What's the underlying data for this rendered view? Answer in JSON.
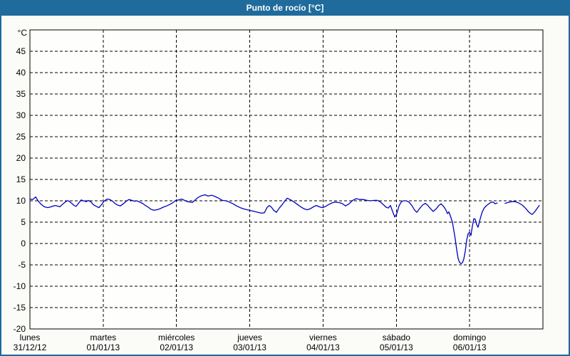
{
  "window": {
    "title": "Punto de rocío [°C]"
  },
  "colors": {
    "titlebar_bg": "#1f6b9c",
    "frame_border": "#1f6b9c",
    "title_text": "#ffffff",
    "line": "#0000c0",
    "grid": "#000000",
    "plot_bg": "#fefffc",
    "page_bg": "#fbfcf8"
  },
  "chart_data": {
    "type": "line",
    "title": "Punto de rocío [°C]",
    "y_unit_label": "°C",
    "ylim": [
      -20,
      50
    ],
    "y_ticks": [
      45,
      40,
      35,
      30,
      25,
      20,
      15,
      10,
      5,
      0,
      -5,
      -10,
      -15,
      -20
    ],
    "grid": "dashed",
    "legend": "none",
    "x_days": [
      {
        "day": "lunes",
        "date": "31/12/12"
      },
      {
        "day": "martes",
        "date": "01/01/13"
      },
      {
        "day": "miércoles",
        "date": "02/01/13"
      },
      {
        "day": "jueves",
        "date": "03/01/13"
      },
      {
        "day": "viernes",
        "date": "04/01/13"
      },
      {
        "day": "sábado",
        "date": "05/01/13"
      },
      {
        "day": "domingo",
        "date": "06/01/13"
      }
    ],
    "series": [
      {
        "name": "punto de rocío",
        "color": "#0000c0",
        "x_unit": "days_from_start",
        "segments": [
          [
            [
              0.0,
              10.4
            ],
            [
              0.039,
              10.3
            ],
            [
              0.078,
              10.9
            ],
            [
              0.107,
              10.1
            ],
            [
              0.146,
              9.3
            ],
            [
              0.194,
              8.6
            ],
            [
              0.243,
              8.4
            ],
            [
              0.292,
              8.6
            ],
            [
              0.34,
              8.9
            ],
            [
              0.369,
              8.8
            ],
            [
              0.408,
              8.6
            ],
            [
              0.447,
              9.2
            ],
            [
              0.496,
              9.9
            ],
            [
              0.525,
              10.0
            ],
            [
              0.564,
              9.5
            ],
            [
              0.603,
              8.9
            ],
            [
              0.632,
              8.7
            ],
            [
              0.671,
              9.6
            ],
            [
              0.7,
              10.2
            ],
            [
              0.729,
              10.0
            ],
            [
              0.768,
              9.8
            ],
            [
              0.797,
              10.1
            ],
            [
              0.836,
              9.7
            ],
            [
              0.865,
              9.1
            ],
            [
              0.904,
              8.7
            ],
            [
              0.943,
              8.4
            ],
            [
              0.972,
              9.0
            ],
            [
              1.011,
              9.9
            ],
            [
              1.05,
              10.4
            ],
            [
              1.089,
              10.3
            ],
            [
              1.128,
              9.9
            ],
            [
              1.157,
              9.4
            ],
            [
              1.196,
              9.0
            ],
            [
              1.235,
              8.8
            ],
            [
              1.274,
              9.3
            ],
            [
              1.313,
              9.9
            ],
            [
              1.351,
              10.3
            ],
            [
              1.39,
              10.1
            ],
            [
              1.429,
              9.9
            ],
            [
              1.458,
              10.0
            ],
            [
              1.497,
              9.7
            ],
            [
              1.536,
              9.4
            ],
            [
              1.575,
              8.9
            ],
            [
              1.614,
              8.5
            ],
            [
              1.653,
              8.0
            ],
            [
              1.692,
              7.8
            ],
            [
              1.731,
              7.9
            ],
            [
              1.77,
              8.1
            ],
            [
              1.818,
              8.5
            ],
            [
              1.867,
              8.8
            ],
            [
              1.915,
              9.2
            ],
            [
              1.954,
              9.6
            ],
            [
              1.993,
              10.1
            ],
            [
              2.032,
              10.2
            ],
            [
              2.071,
              10.4
            ],
            [
              2.11,
              10.1
            ],
            [
              2.149,
              9.8
            ],
            [
              2.188,
              9.7
            ],
            [
              2.217,
              9.6
            ],
            [
              2.256,
              10.2
            ],
            [
              2.295,
              10.8
            ],
            [
              2.343,
              11.2
            ],
            [
              2.392,
              11.4
            ],
            [
              2.431,
              11.1
            ],
            [
              2.479,
              11.3
            ],
            [
              2.528,
              11.0
            ],
            [
              2.576,
              10.6
            ],
            [
              2.625,
              10.1
            ],
            [
              2.674,
              10.0
            ],
            [
              2.722,
              9.7
            ],
            [
              2.771,
              9.3
            ],
            [
              2.819,
              8.8
            ],
            [
              2.868,
              8.4
            ],
            [
              2.917,
              8.1
            ],
            [
              2.965,
              7.9
            ],
            [
              3.014,
              7.7
            ],
            [
              3.063,
              7.5
            ],
            [
              3.111,
              7.3
            ],
            [
              3.16,
              7.1
            ],
            [
              3.199,
              7.2
            ],
            [
              3.238,
              8.5
            ],
            [
              3.267,
              8.9
            ],
            [
              3.296,
              8.5
            ],
            [
              3.325,
              7.8
            ],
            [
              3.364,
              7.3
            ],
            [
              3.403,
              8.3
            ],
            [
              3.442,
              9.1
            ],
            [
              3.481,
              10.0
            ],
            [
              3.51,
              10.6
            ],
            [
              3.549,
              10.3
            ],
            [
              3.597,
              9.8
            ],
            [
              3.646,
              9.2
            ],
            [
              3.694,
              8.6
            ],
            [
              3.743,
              8.1
            ],
            [
              3.782,
              7.9
            ],
            [
              3.821,
              8.1
            ],
            [
              3.869,
              8.6
            ],
            [
              3.908,
              8.9
            ],
            [
              3.947,
              8.6
            ],
            [
              3.986,
              8.4
            ],
            [
              4.025,
              8.6
            ],
            [
              4.074,
              9.1
            ],
            [
              4.122,
              9.5
            ],
            [
              4.161,
              9.7
            ],
            [
              4.21,
              9.6
            ],
            [
              4.258,
              9.4
            ],
            [
              4.307,
              8.8
            ],
            [
              4.356,
              9.3
            ],
            [
              4.404,
              10.1
            ],
            [
              4.453,
              10.5
            ],
            [
              4.501,
              10.3
            ],
            [
              4.55,
              10.3
            ],
            [
              4.599,
              10.1
            ],
            [
              4.647,
              10.0
            ],
            [
              4.696,
              10.1
            ],
            [
              4.744,
              10.1
            ],
            [
              4.783,
              9.7
            ],
            [
              4.822,
              9.1
            ],
            [
              4.861,
              8.5
            ],
            [
              4.89,
              8.3
            ],
            [
              4.919,
              8.9
            ],
            [
              4.949,
              7.5
            ],
            [
              4.978,
              6.2
            ],
            [
              5.007,
              7.0
            ],
            [
              5.036,
              8.8
            ],
            [
              5.065,
              9.7
            ],
            [
              5.094,
              10.0
            ],
            [
              5.133,
              10.0
            ],
            [
              5.172,
              9.7
            ],
            [
              5.211,
              8.9
            ],
            [
              5.25,
              7.8
            ],
            [
              5.279,
              7.3
            ],
            [
              5.318,
              8.2
            ],
            [
              5.357,
              9.0
            ],
            [
              5.396,
              9.4
            ],
            [
              5.425,
              9.0
            ],
            [
              5.464,
              8.2
            ],
            [
              5.503,
              7.5
            ],
            [
              5.542,
              8.1
            ],
            [
              5.581,
              8.9
            ],
            [
              5.61,
              9.3
            ],
            [
              5.649,
              8.6
            ],
            [
              5.678,
              7.8
            ],
            [
              5.697,
              7.0
            ],
            [
              5.717,
              7.4
            ],
            [
              5.736,
              6.5
            ],
            [
              5.765,
              5.0
            ],
            [
              5.785,
              3.0
            ],
            [
              5.804,
              1.0
            ],
            [
              5.824,
              -1.5
            ],
            [
              5.843,
              -3.5
            ],
            [
              5.862,
              -4.4
            ],
            [
              5.882,
              -4.7
            ],
            [
              5.901,
              -4.5
            ],
            [
              5.921,
              -3.6
            ],
            [
              5.94,
              -1.8
            ],
            [
              5.96,
              0.8
            ],
            [
              5.979,
              2.3
            ],
            [
              5.999,
              2.6
            ],
            [
              6.018,
              1.9
            ],
            [
              6.037,
              4.0
            ],
            [
              6.057,
              5.8
            ],
            [
              6.076,
              5.7
            ],
            [
              6.096,
              4.4
            ],
            [
              6.115,
              3.8
            ],
            [
              6.135,
              5.2
            ],
            [
              6.154,
              6.4
            ],
            [
              6.173,
              7.4
            ],
            [
              6.202,
              8.4
            ],
            [
              6.232,
              8.9
            ],
            [
              6.261,
              9.3
            ],
            [
              6.29,
              9.6
            ],
            [
              6.319,
              9.7
            ],
            [
              6.348,
              9.3
            ],
            [
              6.377,
              9.5
            ]
          ],
          [
            [
              6.484,
              9.4
            ],
            [
              6.523,
              9.6
            ],
            [
              6.571,
              9.8
            ],
            [
              6.62,
              9.8
            ],
            [
              6.668,
              9.5
            ],
            [
              6.717,
              9.0
            ],
            [
              6.766,
              8.2
            ],
            [
              6.805,
              7.4
            ],
            [
              6.834,
              7.0
            ],
            [
              6.853,
              6.8
            ],
            [
              6.882,
              7.3
            ],
            [
              6.912,
              8.0
            ],
            [
              6.95,
              8.9
            ]
          ]
        ]
      }
    ]
  }
}
